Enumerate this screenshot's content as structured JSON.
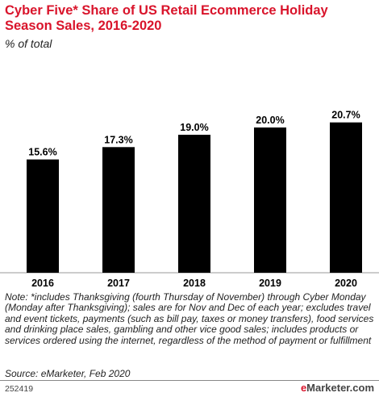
{
  "header": {
    "title": "Cyber Five* Share of US Retail Ecommerce Holiday Season Sales, 2016-2020",
    "subtitle": "% of total"
  },
  "chart_data": {
    "type": "bar",
    "categories": [
      "2016",
      "2017",
      "2018",
      "2019",
      "2020"
    ],
    "values": [
      15.6,
      17.3,
      19.0,
      20.0,
      20.7
    ],
    "value_labels": [
      "15.6%",
      "17.3%",
      "19.0%",
      "20.0%",
      "20.7%"
    ],
    "ylim": [
      0,
      22
    ],
    "grid": false,
    "bar_color": "#000000"
  },
  "footer": {
    "note": "Note: *includes Thanksgiving (fourth Thursday of November) through Cyber Monday (Monday after Thanksgiving); sales are for Nov and Dec of each year; excludes travel and event tickets, payments (such as bill pay, taxes or money transfers), food services and drinking place sales, gambling and other vice good sales; includes products or services ordered using the internet, regardless of the method of payment or fulfillment",
    "source": "Source: eMarketer, Feb 2020",
    "chart_id": "252419",
    "logo_prefix": "e",
    "logo_rest": "Marketer",
    "logo_suffix": ".com"
  },
  "colors": {
    "title": "#d9142b",
    "bars": "#000000"
  }
}
